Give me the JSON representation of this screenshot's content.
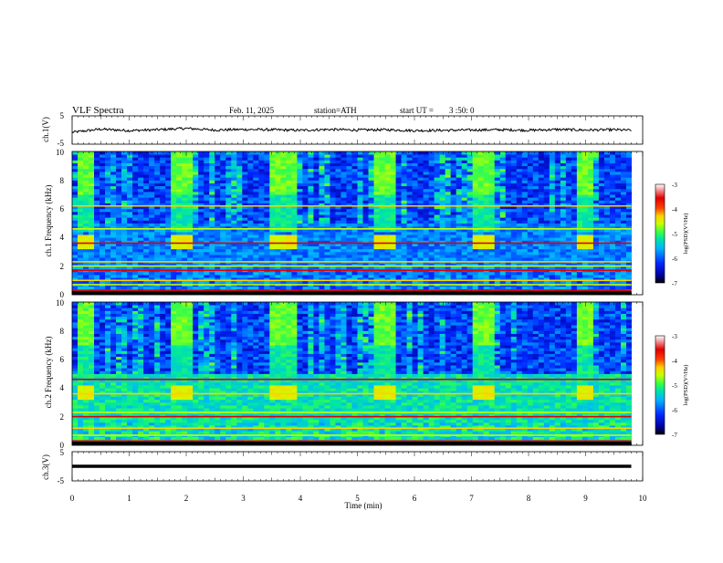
{
  "header": {
    "title": "VLF Spectra",
    "date": "Feb. 11, 2025",
    "station": "station=ATH",
    "start_label": "start UT =",
    "start_value": "3 :50: 0"
  },
  "colors": {
    "accent_black": "#000000",
    "colormap": [
      "#000000",
      "#0000a0",
      "#0028ff",
      "#00b4ff",
      "#00e8a0",
      "#40ff40",
      "#c8ff00",
      "#ffd000",
      "#ff4000",
      "#e00000",
      "#ffffff"
    ]
  },
  "chart_data": [
    {
      "type": "line",
      "panel": "ch1-waveform",
      "ylabel": "ch.1(V)",
      "ylim": [
        -5,
        5
      ],
      "yticks": [
        "5",
        "-5"
      ],
      "x": [
        0,
        0.5,
        1,
        1.5,
        2,
        2.5,
        3,
        3.5,
        4,
        4.5,
        5,
        5.5,
        6,
        6.5,
        7,
        7.5,
        8,
        8.5,
        9,
        9.5,
        9.8
      ],
      "y": [
        -0.8,
        0.3,
        -0.2,
        0.1,
        0.6,
        0.0,
        0.2,
        0.1,
        -0.1,
        0.2,
        0.0,
        0.1,
        -0.2,
        -0.1,
        0.0,
        0.1,
        -0.1,
        0.2,
        0.0,
        0.1,
        -0.1
      ],
      "grid": false
    },
    {
      "type": "heatmap",
      "panel": "ch1-spectrogram",
      "ylabel": "ch.1 Frequency (kHz)",
      "ylim": [
        0,
        10
      ],
      "yticks": [
        "0",
        "2",
        "4",
        "6",
        "8",
        "10"
      ],
      "xlim": [
        0,
        10
      ],
      "colorbar": {
        "label": "log(PSD)(V²/Hz)",
        "ticks": [
          "-3",
          "-4",
          "-5",
          "-6",
          "-7"
        ],
        "range": [
          -7,
          -3
        ]
      },
      "bright_bursts_min": [
        [
          0.1,
          0.4
        ],
        [
          1.75,
          2.15
        ],
        [
          3.5,
          3.9
        ],
        [
          5.25,
          5.7
        ],
        [
          7.0,
          7.45
        ],
        [
          8.8,
          9.15
        ]
      ],
      "steady_lines_khz": [
        0.3,
        0.7,
        1.0,
        1.7,
        2.0,
        2.3,
        3.6,
        4.6,
        6.2
      ]
    },
    {
      "type": "heatmap",
      "panel": "ch2-spectrogram",
      "ylabel": "ch.2 Frequency (kHz)",
      "ylim": [
        0,
        10
      ],
      "yticks": [
        "0",
        "2",
        "4",
        "6",
        "8",
        "10"
      ],
      "xlim": [
        0,
        10
      ],
      "colorbar": {
        "label": "log(PSD)(V²/Hz)",
        "ticks": [
          "-3",
          "-4",
          "-5",
          "-6",
          "-7"
        ],
        "range": [
          -7,
          -3
        ]
      },
      "bright_bursts_min": [
        [
          0.1,
          0.4
        ],
        [
          1.75,
          2.15
        ],
        [
          3.5,
          3.9
        ],
        [
          5.25,
          5.7
        ],
        [
          7.0,
          7.45
        ],
        [
          8.8,
          9.15
        ]
      ],
      "steady_lines_khz": [
        0.3,
        0.7,
        1.2,
        2.0,
        2.3,
        3.6,
        4.6
      ]
    },
    {
      "type": "line",
      "panel": "ch3-waveform",
      "ylabel": "ch.3(V)",
      "ylim": [
        -5,
        5
      ],
      "yticks": [
        "5",
        "-5"
      ],
      "xlabel": "Time (min)",
      "xlim": [
        0,
        10
      ],
      "xticks": [
        "0",
        "1",
        "2",
        "3",
        "4",
        "5",
        "6",
        "7",
        "8",
        "9",
        "10"
      ],
      "x": [
        0,
        9.8
      ],
      "y": [
        0,
        0
      ],
      "grid": false
    }
  ]
}
